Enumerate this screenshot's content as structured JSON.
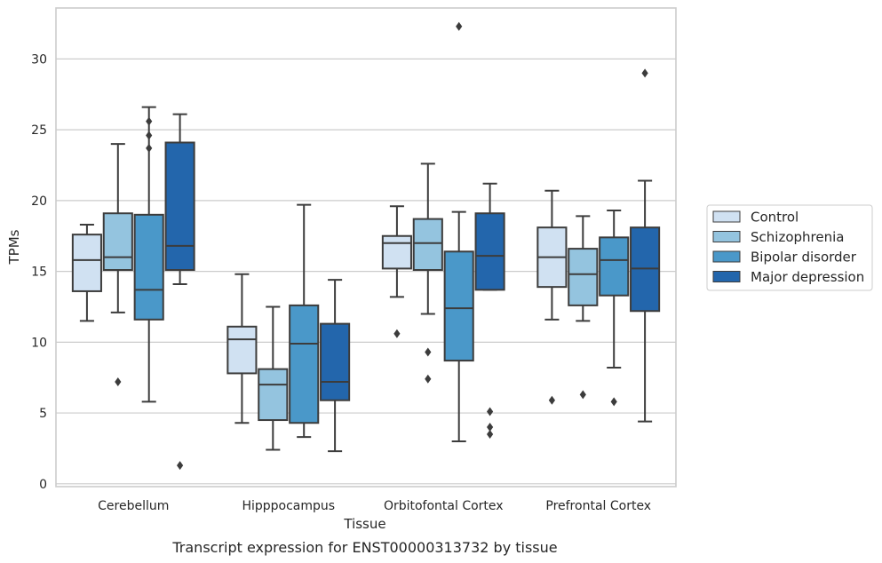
{
  "chart_data": {
    "type": "boxplot",
    "title": "",
    "caption": "Transcript expression for ENST00000313732 by tissue",
    "xlabel": "Tissue",
    "ylabel": "TPMs",
    "ylim": [
      -0.2,
      33.6
    ],
    "yticks": [
      0,
      5,
      10,
      15,
      20,
      25,
      30
    ],
    "grid": "horizontal",
    "legend_position": "right",
    "categories": [
      "Cerebellum",
      "Hipppocampus",
      "Orbitofontal Cortex",
      "Prefrontal Cortex"
    ],
    "series": [
      {
        "name": "Control",
        "color": "#d0e1f2",
        "boxes": [
          {
            "q1": 13.6,
            "median": 15.8,
            "q3": 17.6,
            "whisker_low": 11.5,
            "whisker_high": 18.3,
            "outliers": []
          },
          {
            "q1": 7.8,
            "median": 10.2,
            "q3": 11.1,
            "whisker_low": 4.3,
            "whisker_high": 14.8,
            "outliers": []
          },
          {
            "q1": 15.2,
            "median": 17.0,
            "q3": 17.5,
            "whisker_low": 13.2,
            "whisker_high": 19.6,
            "outliers": [
              10.6
            ]
          },
          {
            "q1": 13.9,
            "median": 16.0,
            "q3": 18.1,
            "whisker_low": 11.6,
            "whisker_high": 20.7,
            "outliers": [
              5.9
            ]
          }
        ]
      },
      {
        "name": "Schizophrenia",
        "color": "#94c4df",
        "boxes": [
          {
            "q1": 15.1,
            "median": 16.0,
            "q3": 19.1,
            "whisker_low": 12.1,
            "whisker_high": 24.0,
            "outliers": [
              7.2
            ]
          },
          {
            "q1": 4.5,
            "median": 7.0,
            "q3": 8.1,
            "whisker_low": 2.4,
            "whisker_high": 12.5,
            "outliers": []
          },
          {
            "q1": 15.1,
            "median": 17.0,
            "q3": 18.7,
            "whisker_low": 12.0,
            "whisker_high": 22.6,
            "outliers": [
              9.3,
              7.4
            ]
          },
          {
            "q1": 12.6,
            "median": 14.8,
            "q3": 16.6,
            "whisker_low": 11.5,
            "whisker_high": 18.9,
            "outliers": [
              6.3
            ]
          }
        ]
      },
      {
        "name": "Bipolar disorder",
        "color": "#4a98c9",
        "boxes": [
          {
            "q1": 11.6,
            "median": 13.7,
            "q3": 19.0,
            "whisker_low": 5.8,
            "whisker_high": 26.6,
            "outliers": [
              25.6,
              24.6,
              23.7
            ]
          },
          {
            "q1": 4.3,
            "median": 9.9,
            "q3": 12.6,
            "whisker_low": 3.3,
            "whisker_high": 19.7,
            "outliers": []
          },
          {
            "q1": 8.7,
            "median": 12.4,
            "q3": 16.4,
            "whisker_low": 3.0,
            "whisker_high": 19.2,
            "outliers": [
              32.3
            ]
          },
          {
            "q1": 13.3,
            "median": 15.8,
            "q3": 17.4,
            "whisker_low": 8.2,
            "whisker_high": 19.3,
            "outliers": [
              5.8
            ]
          }
        ]
      },
      {
        "name": "Major depression",
        "color": "#2366ac",
        "boxes": [
          {
            "q1": 15.1,
            "median": 16.8,
            "q3": 24.1,
            "whisker_low": 14.1,
            "whisker_high": 26.1,
            "outliers": [
              1.3
            ]
          },
          {
            "q1": 5.9,
            "median": 7.2,
            "q3": 11.3,
            "whisker_low": 2.3,
            "whisker_high": 14.4,
            "outliers": []
          },
          {
            "q1": 13.7,
            "median": 16.1,
            "q3": 19.1,
            "whisker_low": 13.7,
            "whisker_high": 21.2,
            "outliers": [
              5.1,
              4.0,
              3.5
            ]
          },
          {
            "q1": 12.2,
            "median": 15.2,
            "q3": 18.1,
            "whisker_low": 4.4,
            "whisker_high": 21.4,
            "outliers": [
              29.0
            ]
          }
        ]
      }
    ]
  }
}
